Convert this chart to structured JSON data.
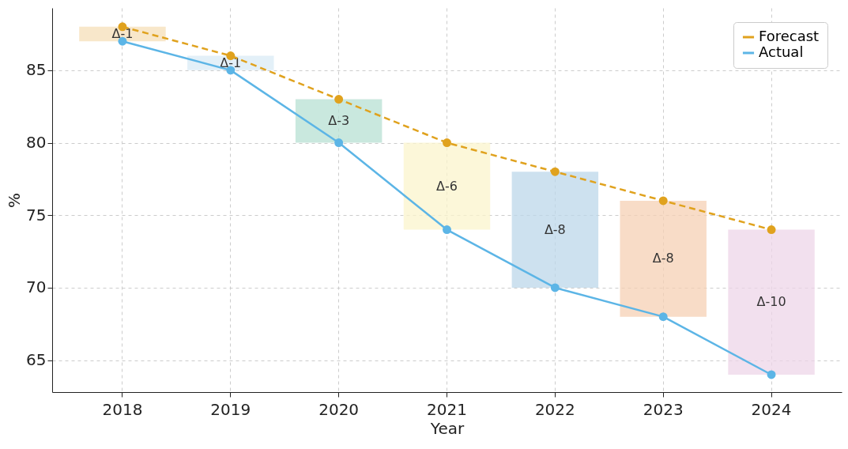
{
  "chart_data": {
    "type": "line",
    "xlabel": "Year",
    "ylabel": "%",
    "categories": [
      "2018",
      "2019",
      "2020",
      "2021",
      "2022",
      "2023",
      "2024"
    ],
    "series": [
      {
        "type": "bar",
        "base": [
          87,
          85,
          80,
          74,
          70,
          68,
          64
        ],
        "values": [
          1,
          1,
          3,
          6,
          8,
          8,
          10
        ],
        "colors": [
          "#f6dfb8",
          "#d9ebf5",
          "#b7e0d3",
          "#fbf4cc",
          "#bcd7ea",
          "#f5d0b4",
          "#eed6e8"
        ],
        "value_labels": [
          "Δ-1",
          "Δ-1",
          "Δ-3",
          "Δ-6",
          "Δ-8",
          "Δ-8",
          "Δ-10"
        ]
      },
      {
        "name": "Forecast",
        "color": "#e0a21e",
        "line_style": "dashed",
        "values": [
          88,
          86,
          83,
          80,
          78,
          76,
          74
        ]
      },
      {
        "name": "Actual",
        "color": "#5cb5e6",
        "line_style": "solid",
        "values": [
          87,
          85,
          80,
          74,
          70,
          68,
          64
        ]
      }
    ],
    "ylim": [
      62.8,
      89.3
    ],
    "yticks": [
      65,
      70,
      75,
      80,
      85
    ],
    "grid": true,
    "legend": "top right",
    "marker": "circle"
  }
}
